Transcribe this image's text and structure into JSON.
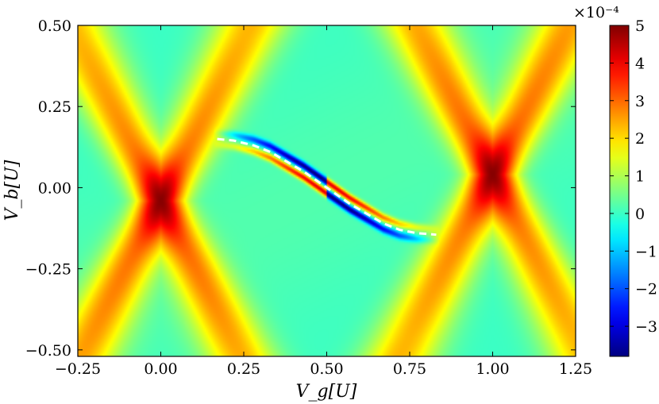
{
  "chart_data": {
    "type": "heatmap",
    "xlabel": "V_g[U]",
    "ylabel": "V_b[U]",
    "xlim": [
      -0.25,
      1.25
    ],
    "ylim": [
      -0.52,
      0.5
    ],
    "x_ticks": [
      -0.25,
      0.0,
      0.25,
      0.5,
      0.75,
      1.0,
      1.25
    ],
    "x_tick_labels": [
      "−0.25",
      "0.00",
      "0.25",
      "0.50",
      "0.75",
      "1.00",
      "1.25"
    ],
    "y_ticks": [
      -0.5,
      -0.25,
      0.0,
      0.25,
      0.5
    ],
    "y_tick_labels": [
      "−0.50",
      "−0.25",
      "0.00",
      "0.25",
      "0.50"
    ],
    "colormap": "jet",
    "colorbar": {
      "range": [
        -3.8,
        5
      ],
      "ticks": [
        -3,
        -2,
        -1,
        0,
        1,
        2,
        3,
        4,
        5
      ],
      "tick_labels": [
        "−3",
        "−2",
        "−1",
        "0",
        "1",
        "2",
        "3",
        "4",
        "5"
      ],
      "scale_label": "×10⁻⁴"
    },
    "features": [
      {
        "kind": "peak",
        "x": 0.0,
        "y": -0.04,
        "value": 4.6
      },
      {
        "kind": "peak",
        "x": 1.0,
        "y": 0.04,
        "value": 4.6
      },
      {
        "kind": "dip",
        "x": 0.3,
        "y": 0.12,
        "value": -3.8
      },
      {
        "kind": "dip",
        "x": 0.73,
        "y": -0.14,
        "value": -3.2
      }
    ],
    "dashed_curve": {
      "color": "#ffffff",
      "x": [
        0.17,
        0.22,
        0.28,
        0.33,
        0.38,
        0.43,
        0.5,
        0.57,
        0.62,
        0.67,
        0.72,
        0.77,
        0.83
      ],
      "y": [
        0.15,
        0.145,
        0.13,
        0.11,
        0.08,
        0.05,
        0.0,
        -0.05,
        -0.08,
        -0.11,
        -0.13,
        -0.14,
        -0.145
      ]
    }
  }
}
